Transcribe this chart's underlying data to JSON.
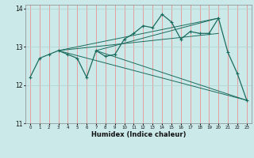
{
  "title": "",
  "xlabel": "Humidex (Indice chaleur)",
  "background_color": "#cce9e9",
  "line_color": "#1a6b5e",
  "vgrid_color": "#f08080",
  "hgrid_color": "#b0d4d4",
  "xlim": [
    -0.5,
    23.5
  ],
  "ylim": [
    11.0,
    14.1
  ],
  "yticks": [
    11,
    12,
    13,
    14
  ],
  "xticks": [
    0,
    1,
    2,
    3,
    4,
    5,
    6,
    7,
    8,
    9,
    10,
    11,
    12,
    13,
    14,
    15,
    16,
    17,
    18,
    19,
    20,
    21,
    22,
    23
  ],
  "series": [
    [
      0,
      12.2
    ],
    [
      1,
      12.7
    ],
    [
      2,
      12.8
    ],
    [
      3,
      12.9
    ],
    [
      4,
      12.8
    ],
    [
      5,
      12.7
    ],
    [
      6,
      12.2
    ],
    [
      7,
      12.9
    ],
    [
      8,
      12.75
    ],
    [
      9,
      12.8
    ],
    [
      10,
      13.2
    ],
    [
      11,
      13.35
    ],
    [
      12,
      13.55
    ],
    [
      13,
      13.5
    ],
    [
      14,
      13.85
    ],
    [
      15,
      13.65
    ],
    [
      16,
      13.2
    ],
    [
      17,
      13.4
    ],
    [
      18,
      13.35
    ],
    [
      19,
      13.35
    ],
    [
      20,
      13.75
    ],
    [
      21,
      12.85
    ],
    [
      22,
      12.3
    ],
    [
      23,
      11.6
    ]
  ],
  "fan_lines": [
    {
      "x": [
        3,
        20
      ],
      "y": [
        12.9,
        13.75
      ]
    },
    {
      "x": [
        3,
        20
      ],
      "y": [
        12.9,
        13.35
      ]
    },
    {
      "x": [
        3,
        23
      ],
      "y": [
        12.9,
        11.6
      ]
    },
    {
      "x": [
        7,
        20
      ],
      "y": [
        12.9,
        13.75
      ]
    },
    {
      "x": [
        7,
        23
      ],
      "y": [
        12.9,
        11.6
      ]
    }
  ]
}
